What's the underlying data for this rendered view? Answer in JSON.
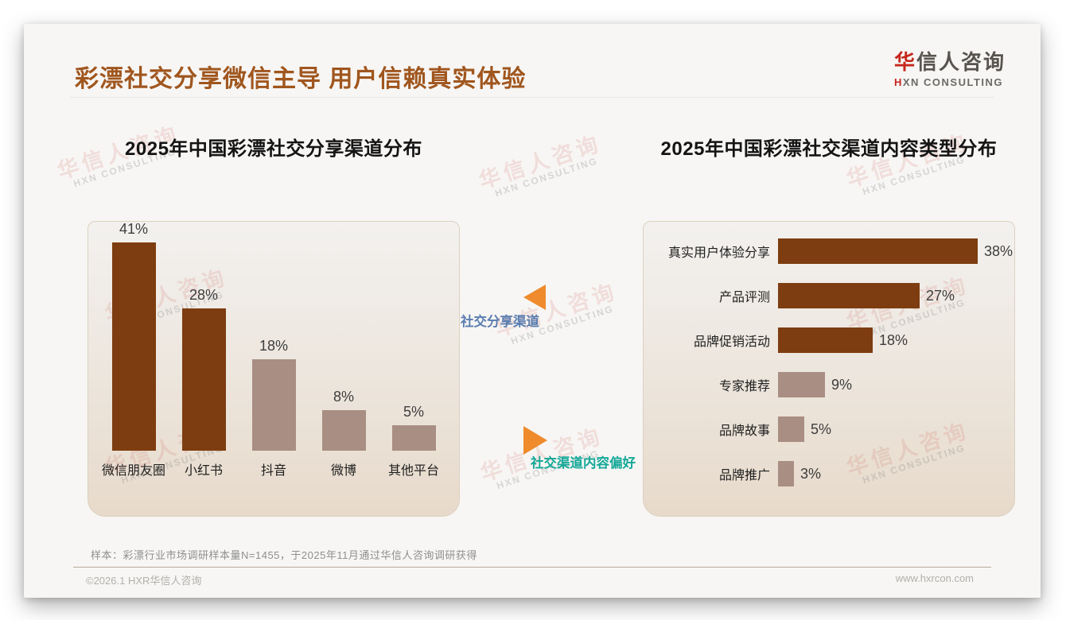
{
  "header": {
    "title": "彩漂社交分享微信主导 用户信赖真实体验",
    "logo": {
      "cn_first": "华",
      "cn_rest": "信人咨询",
      "en_first": "H",
      "en_rest": "XN CONSULTING"
    }
  },
  "watermark": {
    "cn": "华信人咨询",
    "en": "HXN CONSULTING"
  },
  "chart_data": [
    {
      "type": "bar",
      "title": "2025年中国彩漂社交分享渠道分布",
      "categories": [
        "微信朋友圈",
        "小红书",
        "抖音",
        "微博",
        "其他平台"
      ],
      "values": [
        41,
        28,
        18,
        8,
        5
      ],
      "unit": "%",
      "highlight_count": 2,
      "colors": {
        "highlight": "#7d3d10",
        "normal": "#a98e83"
      },
      "ylim": [
        0,
        45
      ],
      "grid": false,
      "legend": "none"
    },
    {
      "type": "bar",
      "orientation": "horizontal",
      "title": "2025年中国彩漂社交渠道内容类型分布",
      "categories": [
        "真实用户体验分享",
        "产品评测",
        "品牌促销活动",
        "专家推荐",
        "品牌故事",
        "品牌推广"
      ],
      "values": [
        38,
        27,
        18,
        9,
        5,
        3
      ],
      "unit": "%",
      "highlight_count": 3,
      "colors": {
        "highlight": "#7d3d10",
        "normal": "#a98e83"
      },
      "xlim": [
        0,
        40
      ],
      "grid": false,
      "legend": "none"
    }
  ],
  "annotations": {
    "top": {
      "label": "社交分享渠道",
      "color": "#5a7daf"
    },
    "bottom": {
      "label": "社交渠道内容偏好",
      "color": "#14a898"
    },
    "arrow_color": "#ef8b2d"
  },
  "footnote": "样本：彩漂行业市场调研样本量N=1455，于2025年11月通过华信人咨询调研获得",
  "footer": {
    "left": "©2026.1 HXR华信人咨询",
    "right": "www.hxrcon.com"
  }
}
